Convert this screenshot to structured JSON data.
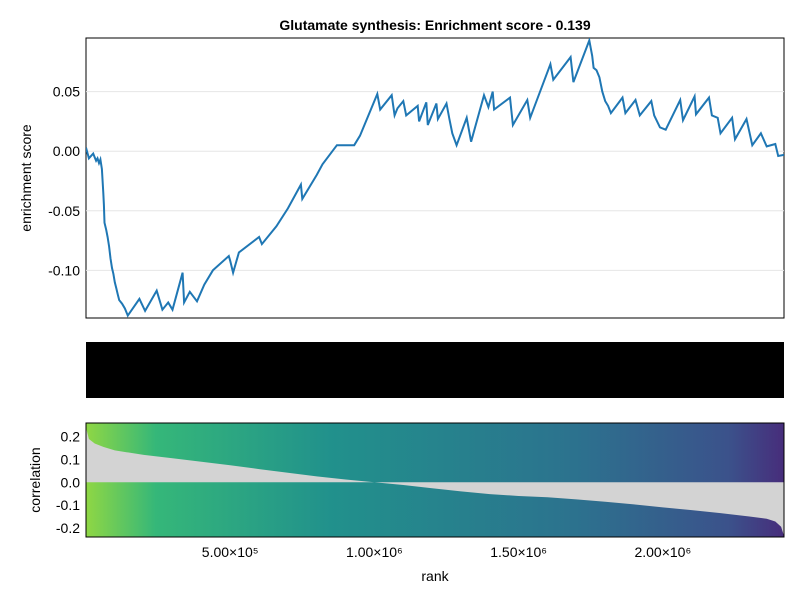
{
  "chart_data": [
    {
      "type": "line",
      "title": "Glutamate synthesis: Enrichment score - 0.139",
      "xlabel": "",
      "ylabel": "enrichment score",
      "xlim": [
        0,
        2420000
      ],
      "ylim": [
        -0.14,
        0.095
      ],
      "grid": true,
      "yticks": [
        0.05,
        0.0,
        -0.05,
        -0.1
      ],
      "ytick_labels": [
        "0.05",
        "0.00",
        "-0.05",
        "-0.10"
      ],
      "color": "#1f77b4",
      "series": [
        {
          "values": [
            [
              0,
              0.003
            ],
            [
              10000,
              -0.006
            ],
            [
              25000,
              -0.002
            ],
            [
              35000,
              -0.008
            ],
            [
              40000,
              -0.006
            ],
            [
              45000,
              -0.01
            ],
            [
              50000,
              -0.007
            ],
            [
              55000,
              -0.015
            ],
            [
              60000,
              -0.035
            ],
            [
              62000,
              -0.045
            ],
            [
              64000,
              -0.06
            ],
            [
              70000,
              -0.066
            ],
            [
              75000,
              -0.072
            ],
            [
              80000,
              -0.08
            ],
            [
              85000,
              -0.09
            ],
            [
              90000,
              -0.098
            ],
            [
              95000,
              -0.103
            ],
            [
              100000,
              -0.11
            ],
            [
              105000,
              -0.115
            ],
            [
              110000,
              -0.12
            ],
            [
              115000,
              -0.125
            ],
            [
              125000,
              -0.128
            ],
            [
              135000,
              -0.132
            ],
            [
              145000,
              -0.138
            ],
            [
              185000,
              -0.124
            ],
            [
              205000,
              -0.134
            ],
            [
              245000,
              -0.117
            ],
            [
              265000,
              -0.133
            ],
            [
              285000,
              -0.127
            ],
            [
              300000,
              -0.133
            ],
            [
              335000,
              -0.102
            ],
            [
              340000,
              -0.127
            ],
            [
              360000,
              -0.118
            ],
            [
              385000,
              -0.126
            ],
            [
              410000,
              -0.112
            ],
            [
              440000,
              -0.1
            ],
            [
              495000,
              -0.088
            ],
            [
              500000,
              -0.092
            ],
            [
              510000,
              -0.102
            ],
            [
              530000,
              -0.085
            ],
            [
              600000,
              -0.072
            ],
            [
              610000,
              -0.078
            ],
            [
              660000,
              -0.063
            ],
            [
              700000,
              -0.048
            ],
            [
              745000,
              -0.028
            ],
            [
              750000,
              -0.04
            ],
            [
              800000,
              -0.02
            ],
            [
              820000,
              -0.011
            ],
            [
              870000,
              0.005
            ],
            [
              930000,
              0.005
            ],
            [
              950000,
              0.013
            ],
            [
              1010000,
              0.048
            ],
            [
              1020000,
              0.035
            ],
            [
              1060000,
              0.047
            ],
            [
              1070000,
              0.03
            ],
            [
              1080000,
              0.036
            ],
            [
              1100000,
              0.042
            ],
            [
              1110000,
              0.03
            ],
            [
              1150000,
              0.038
            ],
            [
              1155000,
              0.025
            ],
            [
              1180000,
              0.041
            ],
            [
              1185000,
              0.022
            ],
            [
              1215000,
              0.04
            ],
            [
              1220000,
              0.027
            ],
            [
              1250000,
              0.04
            ],
            [
              1260000,
              0.027
            ],
            [
              1270000,
              0.015
            ],
            [
              1285000,
              0.005
            ],
            [
              1320000,
              0.028
            ],
            [
              1335000,
              0.008
            ],
            [
              1380000,
              0.047
            ],
            [
              1395000,
              0.037
            ],
            [
              1410000,
              0.05
            ],
            [
              1415000,
              0.035
            ],
            [
              1470000,
              0.045
            ],
            [
              1480000,
              0.022
            ],
            [
              1530000,
              0.043
            ],
            [
              1540000,
              0.028
            ],
            [
              1610000,
              0.073
            ],
            [
              1620000,
              0.06
            ],
            [
              1680000,
              0.079
            ],
            [
              1690000,
              0.058
            ],
            [
              1745000,
              0.093
            ],
            [
              1755000,
              0.08
            ],
            [
              1760000,
              0.07
            ],
            [
              1770000,
              0.068
            ],
            [
              1780000,
              0.062
            ],
            [
              1790000,
              0.05
            ],
            [
              1800000,
              0.042
            ],
            [
              1810000,
              0.038
            ],
            [
              1820000,
              0.032
            ],
            [
              1860000,
              0.045
            ],
            [
              1870000,
              0.032
            ],
            [
              1905000,
              0.043
            ],
            [
              1920000,
              0.03
            ],
            [
              1960000,
              0.042
            ],
            [
              1970000,
              0.03
            ],
            [
              1990000,
              0.02
            ],
            [
              2010000,
              0.018
            ],
            [
              2060000,
              0.043
            ],
            [
              2070000,
              0.026
            ],
            [
              2110000,
              0.046
            ],
            [
              2115000,
              0.031
            ],
            [
              2160000,
              0.045
            ],
            [
              2170000,
              0.03
            ],
            [
              2190000,
              0.028
            ],
            [
              2200000,
              0.015
            ],
            [
              2240000,
              0.028
            ],
            [
              2250000,
              0.01
            ],
            [
              2290000,
              0.027
            ],
            [
              2310000,
              0.005
            ],
            [
              2340000,
              0.015
            ],
            [
              2360000,
              0.004
            ],
            [
              2390000,
              0.006
            ],
            [
              2400000,
              -0.004
            ],
            [
              2420000,
              -0.003
            ]
          ]
        }
      ]
    },
    {
      "type": "heatmap",
      "title": "",
      "description_color": "#000000"
    },
    {
      "type": "area",
      "xlabel": "rank",
      "ylabel": "correlation",
      "xlim": [
        0,
        2420000
      ],
      "ylim": [
        -0.24,
        0.26
      ],
      "xticks": [
        500000,
        1000000,
        1500000,
        2000000
      ],
      "xtick_labels": [
        "5.00×10⁵",
        "1.00×10⁶",
        "1.50×10⁶",
        "2.00×10⁶"
      ],
      "yticks": [
        0.2,
        0.1,
        0.0,
        -0.1,
        -0.2
      ],
      "ytick_labels": [
        "0.2",
        "0.1",
        "0.0",
        "-0.1",
        "-0.2"
      ],
      "fill_color": "#d3d3d3",
      "colormap": [
        "#8fd744",
        "#35b779",
        "#21918c",
        "#31688e",
        "#443983"
      ],
      "series": [
        {
          "values": [
            [
              0,
              0.24
            ],
            [
              10000,
              0.19
            ],
            [
              30000,
              0.17
            ],
            [
              60000,
              0.155
            ],
            [
              100000,
              0.14
            ],
            [
              200000,
              0.12
            ],
            [
              300000,
              0.105
            ],
            [
              400000,
              0.09
            ],
            [
              500000,
              0.075
            ],
            [
              600000,
              0.058
            ],
            [
              700000,
              0.042
            ],
            [
              800000,
              0.026
            ],
            [
              900000,
              0.012
            ],
            [
              1000000,
              0.0
            ],
            [
              1100000,
              -0.012
            ],
            [
              1200000,
              -0.026
            ],
            [
              1300000,
              -0.04
            ],
            [
              1400000,
              -0.052
            ],
            [
              1500000,
              -0.06
            ],
            [
              1600000,
              -0.066
            ],
            [
              1700000,
              -0.075
            ],
            [
              1800000,
              -0.085
            ],
            [
              1900000,
              -0.097
            ],
            [
              2000000,
              -0.11
            ],
            [
              2100000,
              -0.122
            ],
            [
              2200000,
              -0.135
            ],
            [
              2300000,
              -0.15
            ],
            [
              2360000,
              -0.16
            ],
            [
              2390000,
              -0.172
            ],
            [
              2410000,
              -0.195
            ],
            [
              2420000,
              -0.235
            ]
          ]
        }
      ]
    }
  ]
}
